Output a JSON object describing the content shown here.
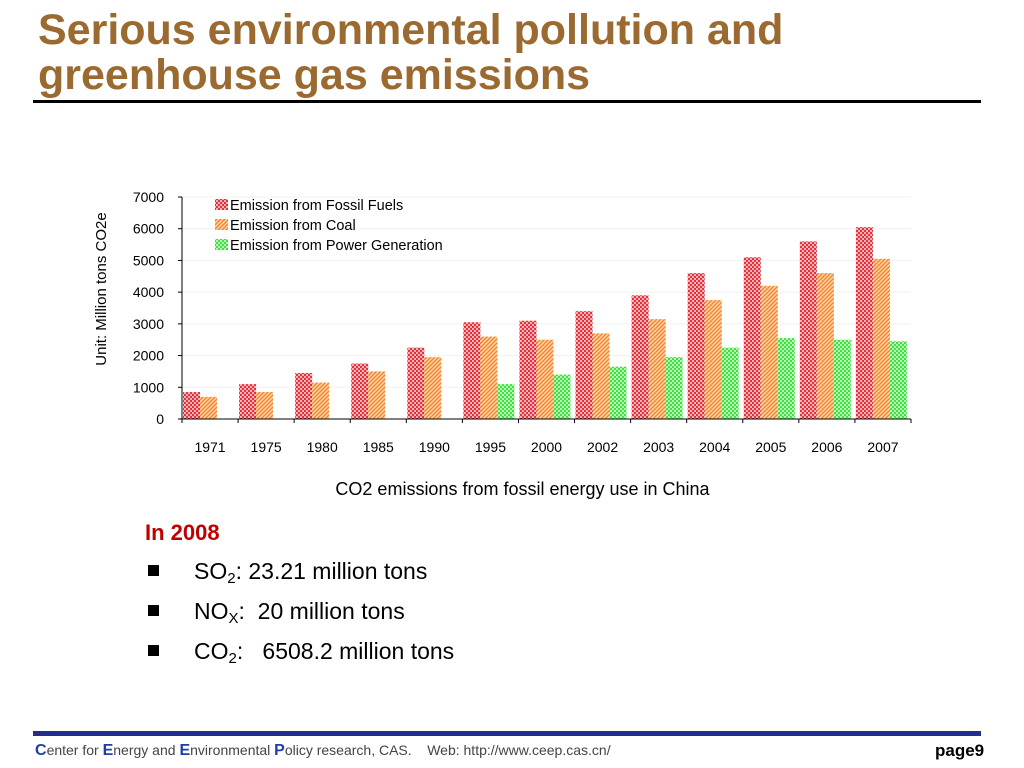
{
  "slide": {
    "title": "Serious environmental pollution and greenhouse gas emissions",
    "caption": "CO2 emissions from fossil energy use in China"
  },
  "bullets": {
    "year_label": "In 2008",
    "items": [
      {
        "chem": "SO",
        "sub": "2",
        "rest": ": 23.21 million tons"
      },
      {
        "chem": "NO",
        "sub": "X",
        "rest": ":  20 million tons"
      },
      {
        "chem": "CO",
        "sub": "2",
        "rest": ":   6508.2 million tons"
      }
    ]
  },
  "footer": {
    "c_cap": "C",
    "c_rest": "enter for ",
    "e_cap": "E",
    "e_rest": "nergy and ",
    "e2_cap": "E",
    "e2_rest": "nvironmental ",
    "p_cap": "P",
    "p_rest": "olicy research, CAS.    Web: http://www.ceep.cas.cn/",
    "page": "page9"
  },
  "chart_data": {
    "type": "bar",
    "ylabel": "Unit: Million tons CO2e",
    "ylim": [
      0,
      7000
    ],
    "yticks": [
      0,
      1000,
      2000,
      3000,
      4000,
      5000,
      6000,
      7000
    ],
    "legend_position": "top-left",
    "categories": [
      "1971",
      "1975",
      "1980",
      "1985",
      "1990",
      "1995",
      "2000",
      "2002",
      "2003",
      "2004",
      "2005",
      "2006",
      "2007"
    ],
    "series": [
      {
        "name": "Emission from Fossil Fuels",
        "color": "#e8303a",
        "values": [
          850,
          1100,
          1450,
          1750,
          2250,
          3050,
          3100,
          3400,
          3900,
          4600,
          5100,
          5600,
          6050
        ]
      },
      {
        "name": "Emission from Coal",
        "color": "#f08a30",
        "values": [
          700,
          850,
          1150,
          1500,
          1950,
          2600,
          2500,
          2700,
          3150,
          3750,
          4200,
          4600,
          5050
        ]
      },
      {
        "name": "Emission from Power Generation",
        "color": "#40e040",
        "values": [
          null,
          null,
          null,
          null,
          null,
          1100,
          1400,
          1650,
          1950,
          2250,
          2550,
          2500,
          2450
        ]
      }
    ]
  }
}
